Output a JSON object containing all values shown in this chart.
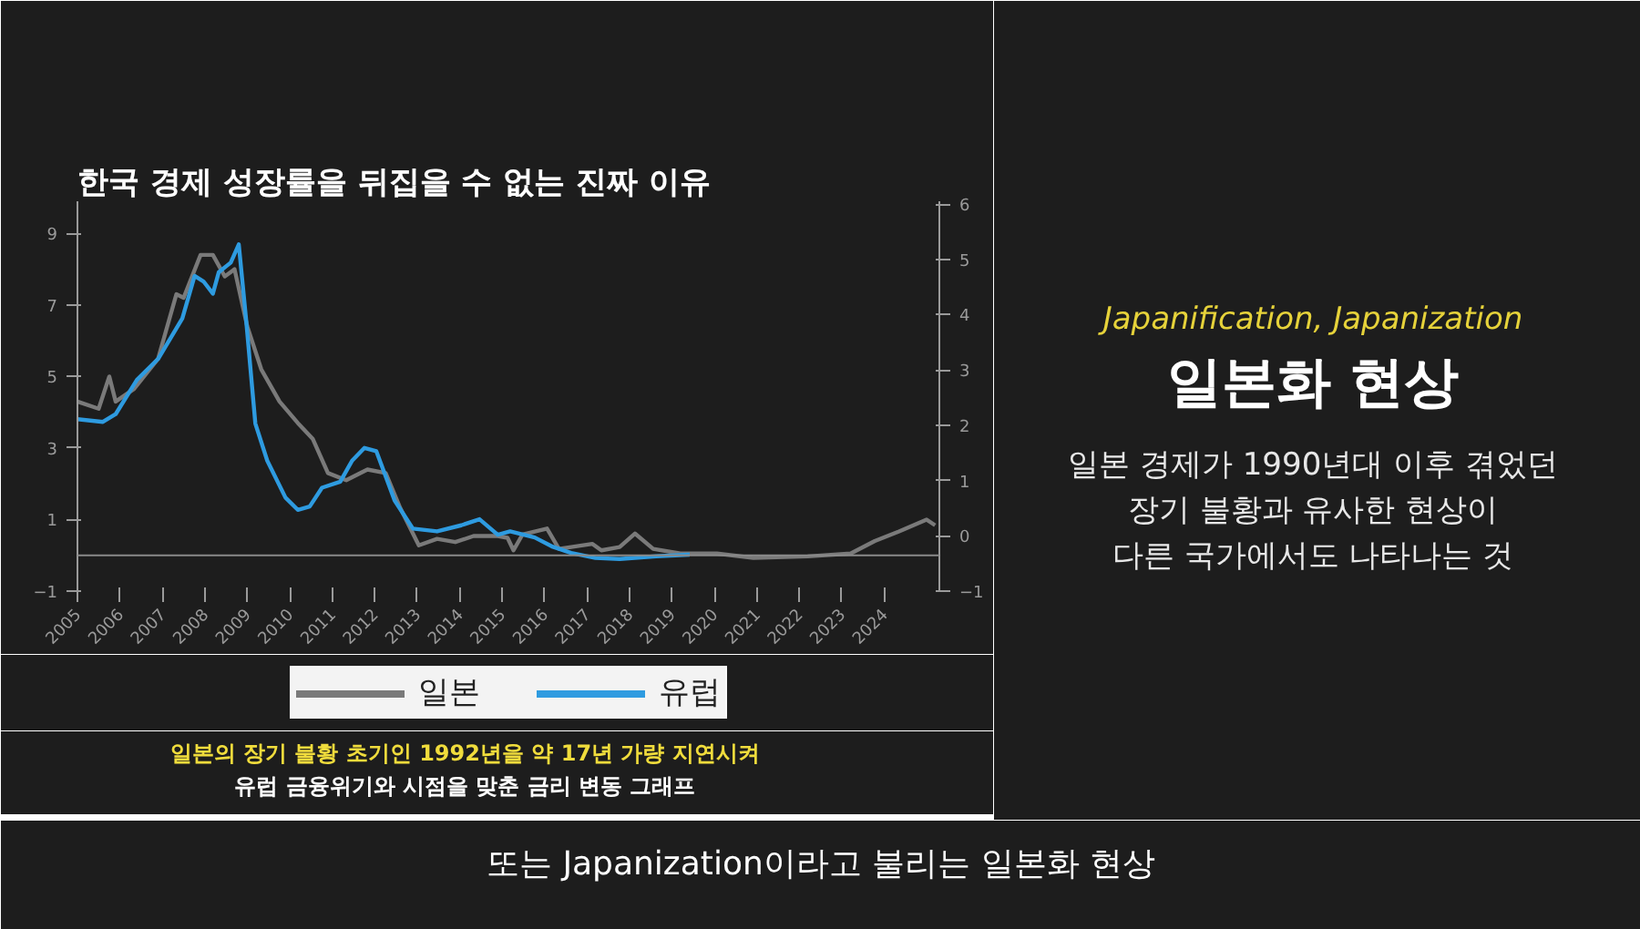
{
  "chart_data": {
    "type": "line",
    "title": "한국 경제 성장률을 뒤집을 수 없는 진짜 이유",
    "xlim": [
      2005,
      2025.3
    ],
    "xticks": [
      2005,
      2006,
      2007,
      2008,
      2009,
      2010,
      2011,
      2012,
      2013,
      2014,
      2015,
      2016,
      2017,
      2018,
      2019,
      2020,
      2021,
      2022,
      2023,
      2024
    ],
    "ylim": [
      -1,
      9.9
    ],
    "yticks": [
      -1,
      1,
      3,
      5,
      7,
      9
    ],
    "y2lim": [
      -1,
      6.05
    ],
    "y2ticks": [
      -1,
      0,
      1,
      2,
      3,
      4,
      5,
      6
    ],
    "grid": false,
    "legend": "bottom",
    "marker": "none",
    "line_style": "solid",
    "ref_lines": [
      {
        "axis": "y",
        "value": 0,
        "color": "#8a8a8a"
      }
    ],
    "series": [
      {
        "name": "일본",
        "color": "#7a7a7a",
        "x": [
          2005.0,
          2005.5,
          2005.75,
          2005.9,
          2006.33,
          2006.9,
          2007.33,
          2007.5,
          2007.9,
          2008.19,
          2008.47,
          2008.7,
          2009.0,
          2009.33,
          2009.76,
          2010.19,
          2010.54,
          2010.9,
          2011.33,
          2011.83,
          2012.26,
          2012.6,
          2013.04,
          2013.47,
          2013.9,
          2014.33,
          2014.9,
          2015.13,
          2015.27,
          2015.48,
          2016.06,
          2016.34,
          2017.13,
          2017.34,
          2017.77,
          2018.13,
          2018.56,
          2019.2,
          2020.06,
          2020.92,
          2022.2,
          2023.21,
          2023.78,
          2024.35,
          2025.0,
          2025.2
        ],
        "values": [
          4.3,
          4.1,
          5.0,
          4.3,
          4.65,
          5.5,
          7.3,
          7.2,
          8.4,
          8.4,
          7.8,
          8.0,
          6.4,
          5.2,
          4.3,
          3.7,
          3.26,
          2.3,
          2.1,
          2.4,
          2.3,
          1.33,
          0.28,
          0.46,
          0.37,
          0.54,
          0.54,
          0.49,
          0.14,
          0.58,
          0.75,
          0.18,
          0.32,
          0.14,
          0.23,
          0.61,
          0.18,
          0.05,
          0.05,
          -0.07,
          -0.03,
          0.05,
          0.4,
          0.67,
          1.0,
          0.84
        ]
      },
      {
        "name": "유럽",
        "color": "#2e9be0",
        "axis": "y2",
        "x": [
          2005.0,
          2005.6,
          2005.9,
          2006.4,
          2006.9,
          2007.47,
          2007.76,
          2007.97,
          2008.19,
          2008.33,
          2008.61,
          2008.8,
          2008.97,
          2009.19,
          2009.47,
          2009.9,
          2010.19,
          2010.47,
          2010.76,
          2011.19,
          2011.47,
          2011.76,
          2012.04,
          2012.47,
          2012.9,
          2013.47,
          2014.04,
          2014.47,
          2014.9,
          2015.19,
          2015.77,
          2016.2,
          2016.63,
          2017.2,
          2017.77,
          2018.63,
          2019.42
        ],
        "values": [
          2.11,
          2.06,
          2.2,
          2.82,
          3.2,
          3.93,
          4.7,
          4.6,
          4.38,
          4.77,
          4.94,
          5.27,
          3.93,
          2.03,
          1.36,
          0.69,
          0.47,
          0.53,
          0.87,
          0.98,
          1.36,
          1.59,
          1.53,
          0.64,
          0.13,
          0.08,
          0.19,
          0.3,
          0.02,
          0.08,
          -0.03,
          -0.2,
          -0.31,
          -0.4,
          -0.42,
          -0.37,
          -0.34
        ]
      }
    ],
    "annotations": [
      "Japanification, Japanization",
      "일본화 현상",
      "일본 경제가 1990년대 이후 겪었던",
      "장기 불황과 유사한 현상이",
      "다른 국가에서도 나타나는 것",
      "일본의 장기 불황 초기인 1992년을 약 17년 가량 지연시켜",
      "유럽 금융위기와 시점을 맞춘 금리 변동 그래프",
      "또는 Japanization이라고 불리는 일본화 현상"
    ]
  }
}
